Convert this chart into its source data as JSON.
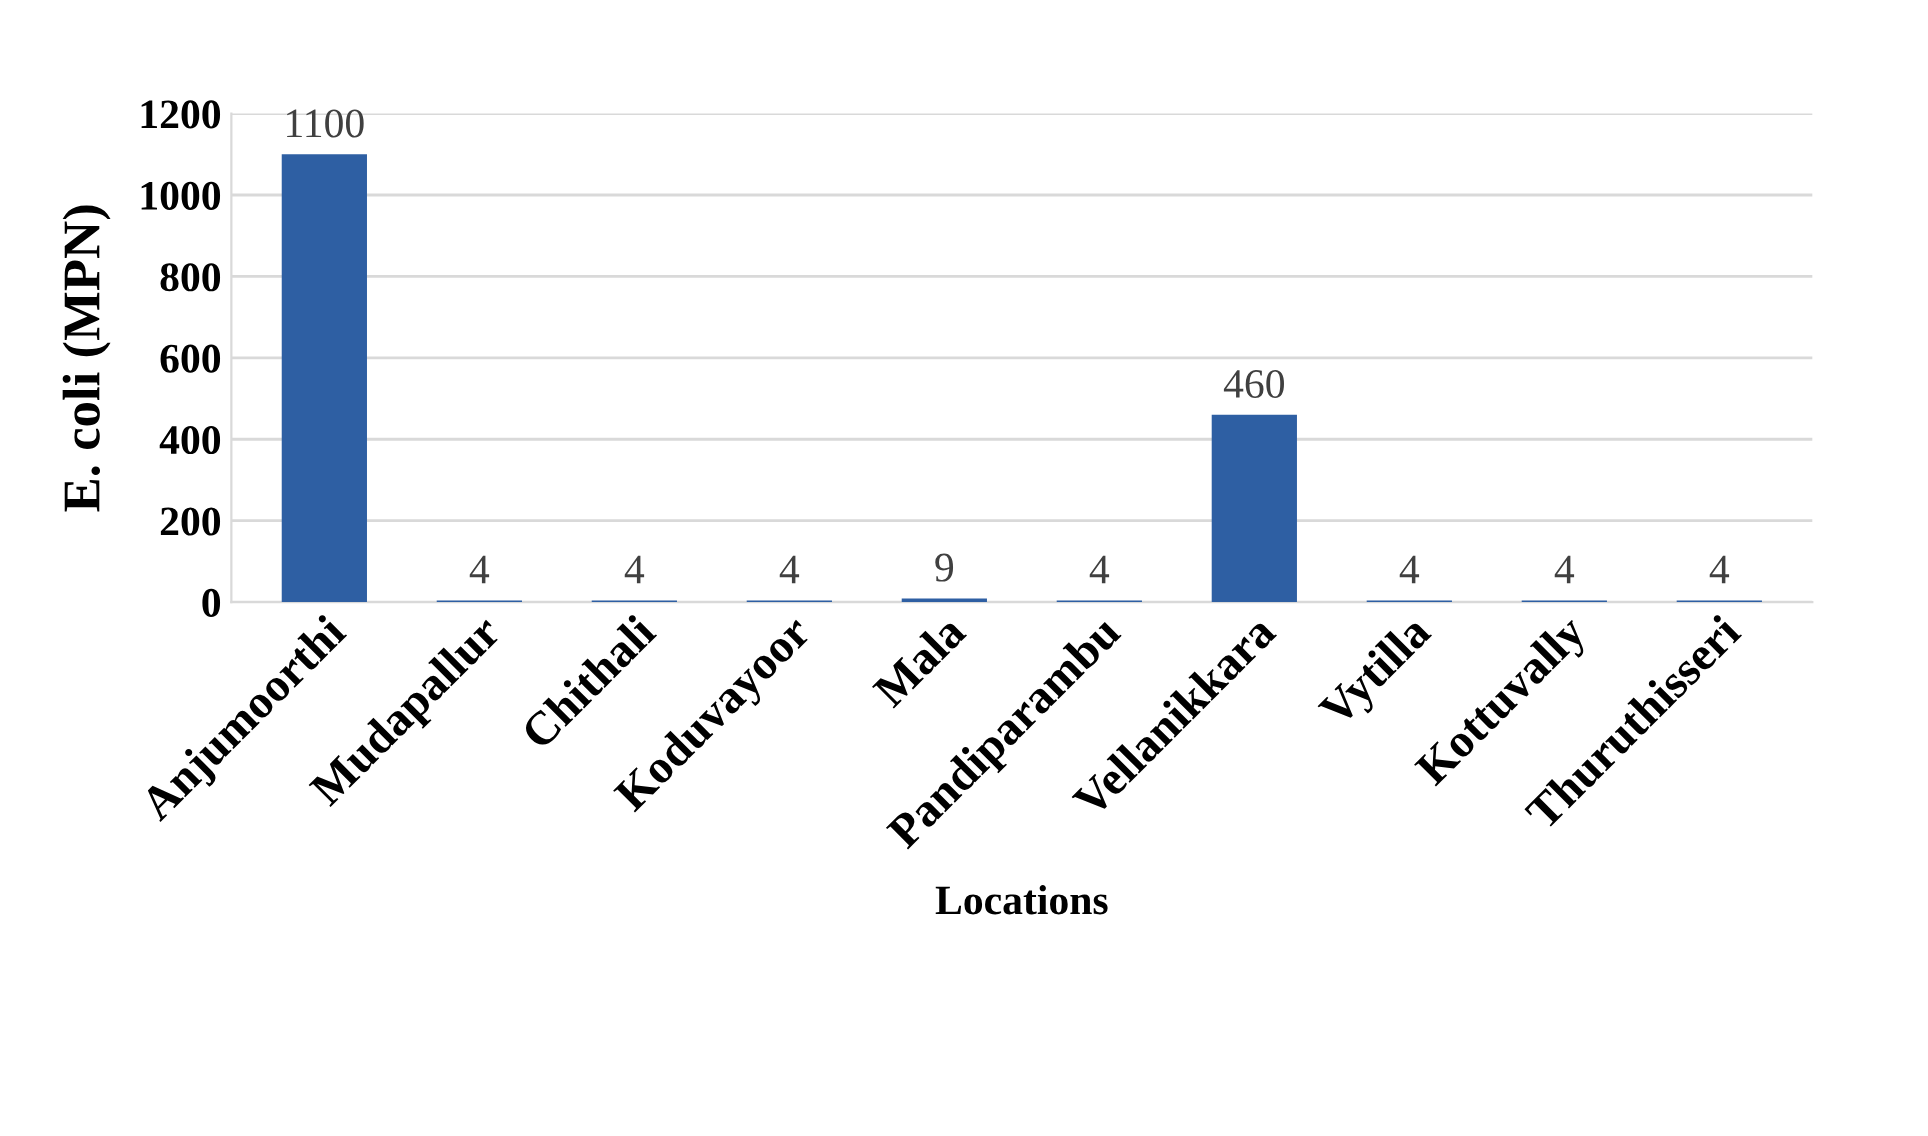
{
  "chart_data": {
    "type": "bar",
    "xlabel": "Locations",
    "ylabel": "E. coli (MPN)",
    "categories": [
      "Anjumoorthi",
      "Mudapallur",
      "Chithali",
      "Koduvayoor",
      "Mala",
      "Pandiparambu",
      "Vellanikkara",
      "Vytilla",
      "Kottuvally",
      "Thuruthisseri"
    ],
    "values": [
      1100,
      4,
      4,
      4,
      9,
      4,
      460,
      4,
      4,
      4
    ],
    "color": "#2e5fa3",
    "ylim": [
      0,
      1200
    ],
    "yticks": [
      0,
      200,
      400,
      600,
      800,
      1000,
      1200
    ],
    "grid": "y",
    "data_labels": true
  }
}
